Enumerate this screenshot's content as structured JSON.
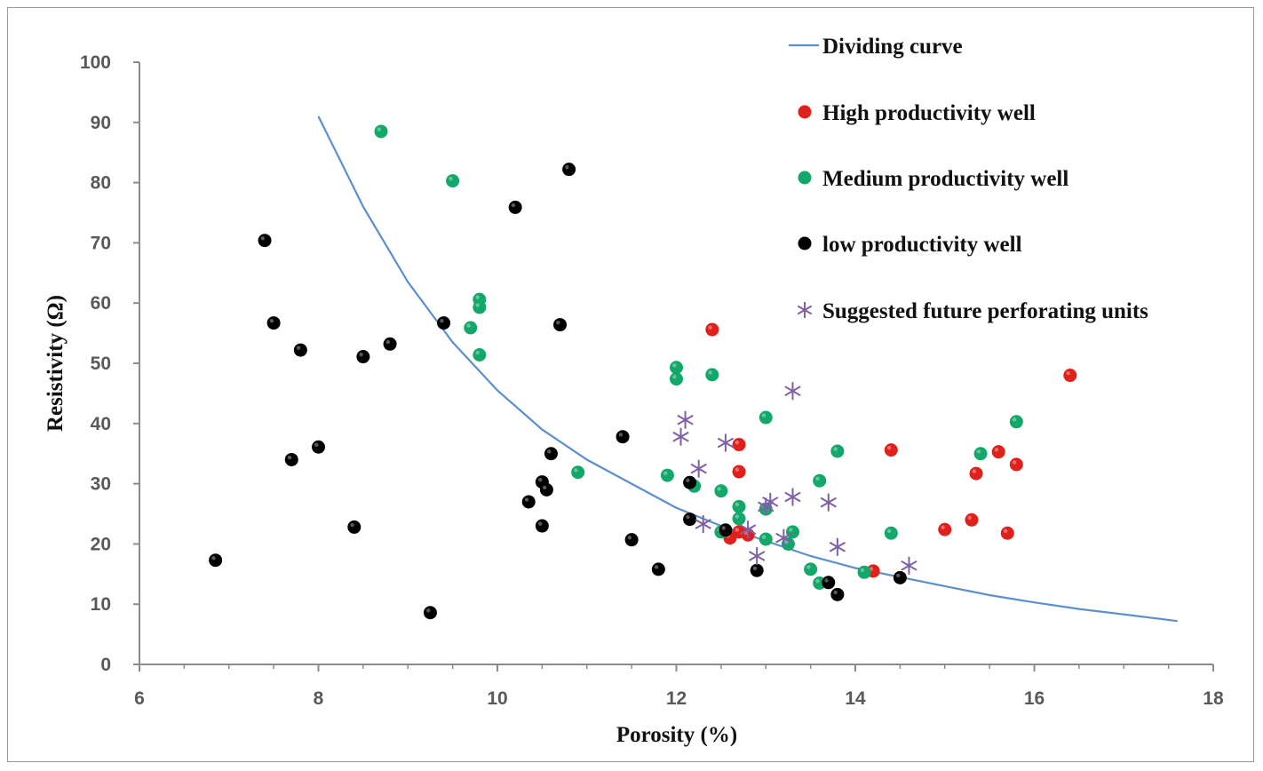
{
  "chart_data": {
    "type": "scatter",
    "title": "",
    "xlabel": "Porosity (%)",
    "ylabel": "Resistivity (Ω)",
    "xlim": [
      6,
      18
    ],
    "ylim": [
      0,
      100
    ],
    "xticks": [
      "6",
      "8",
      "10",
      "12",
      "14",
      "16",
      "18"
    ],
    "yticks": [
      "0",
      "10",
      "20",
      "30",
      "40",
      "50",
      "60",
      "70",
      "80",
      "90",
      "100"
    ],
    "legend_position": "top-right",
    "series": [
      {
        "name": "Dividing curve",
        "kind": "line",
        "color": "#5b8fcf",
        "points": [
          [
            8.0,
            91.0
          ],
          [
            8.5,
            76.0
          ],
          [
            9.0,
            63.5
          ],
          [
            9.5,
            53.5
          ],
          [
            10.0,
            45.5
          ],
          [
            10.5,
            39.0
          ],
          [
            11.0,
            34.0
          ],
          [
            11.5,
            30.0
          ],
          [
            12.0,
            26.0
          ],
          [
            12.5,
            23.0
          ],
          [
            13.0,
            20.5
          ],
          [
            13.5,
            18.0
          ],
          [
            14.0,
            16.0
          ],
          [
            14.5,
            14.5
          ],
          [
            15.0,
            13.0
          ],
          [
            15.5,
            11.5
          ],
          [
            16.0,
            10.3
          ],
          [
            16.5,
            9.2
          ],
          [
            17.0,
            8.3
          ],
          [
            17.6,
            7.2
          ]
        ]
      },
      {
        "name": "High productivity well",
        "kind": "marker",
        "color": "#e0201b",
        "points": [
          [
            12.4,
            55.6
          ],
          [
            12.7,
            36.5
          ],
          [
            12.7,
            32.0
          ],
          [
            12.7,
            22.0
          ],
          [
            12.6,
            21.0
          ],
          [
            12.8,
            21.5
          ],
          [
            14.2,
            15.5
          ],
          [
            14.4,
            35.6
          ],
          [
            15.0,
            22.4
          ],
          [
            15.3,
            24.0
          ],
          [
            15.35,
            31.7
          ],
          [
            15.6,
            35.3
          ],
          [
            15.7,
            21.8
          ],
          [
            15.8,
            33.2
          ],
          [
            16.4,
            48.0
          ]
        ]
      },
      {
        "name": "Medium productivity well",
        "kind": "marker",
        "color": "#13a86a",
        "points": [
          [
            8.7,
            88.5
          ],
          [
            9.5,
            80.3
          ],
          [
            9.7,
            55.9
          ],
          [
            9.8,
            60.6
          ],
          [
            9.8,
            59.3
          ],
          [
            9.8,
            51.4
          ],
          [
            10.9,
            31.9
          ],
          [
            11.9,
            31.4
          ],
          [
            12.0,
            47.4
          ],
          [
            12.0,
            49.3
          ],
          [
            12.2,
            29.6
          ],
          [
            12.4,
            48.1
          ],
          [
            12.5,
            28.8
          ],
          [
            12.5,
            22.0
          ],
          [
            12.7,
            26.2
          ],
          [
            12.7,
            24.2
          ],
          [
            13.0,
            25.8
          ],
          [
            13.0,
            20.8
          ],
          [
            13.0,
            41.0
          ],
          [
            13.25,
            20.0
          ],
          [
            13.3,
            22.0
          ],
          [
            13.5,
            15.8
          ],
          [
            13.6,
            13.5
          ],
          [
            13.6,
            30.5
          ],
          [
            13.8,
            35.4
          ],
          [
            14.1,
            15.3
          ],
          [
            14.4,
            21.8
          ],
          [
            15.4,
            35.0
          ],
          [
            15.8,
            40.3
          ]
        ]
      },
      {
        "name": "low productivity well",
        "kind": "marker",
        "color": "#000000",
        "points": [
          [
            6.85,
            17.3
          ],
          [
            7.4,
            70.4
          ],
          [
            7.5,
            56.7
          ],
          [
            7.7,
            34.0
          ],
          [
            7.8,
            52.2
          ],
          [
            8.0,
            36.1
          ],
          [
            8.4,
            22.8
          ],
          [
            8.5,
            51.1
          ],
          [
            8.8,
            53.2
          ],
          [
            9.25,
            8.6
          ],
          [
            9.4,
            56.7
          ],
          [
            10.2,
            75.9
          ],
          [
            10.35,
            27.0
          ],
          [
            10.5,
            30.3
          ],
          [
            10.5,
            23.0
          ],
          [
            10.55,
            29.0
          ],
          [
            10.6,
            35.0
          ],
          [
            10.7,
            56.4
          ],
          [
            10.8,
            82.2
          ],
          [
            11.4,
            37.8
          ],
          [
            11.5,
            20.7
          ],
          [
            11.8,
            15.8
          ],
          [
            12.15,
            24.1
          ],
          [
            12.15,
            30.2
          ],
          [
            12.55,
            22.3
          ],
          [
            12.9,
            15.6
          ],
          [
            13.7,
            13.6
          ],
          [
            13.8,
            11.6
          ],
          [
            14.5,
            14.4
          ]
        ]
      },
      {
        "name": "Suggested future perforating units",
        "kind": "asterisk",
        "color": "#7f5fa8",
        "points": [
          [
            12.05,
            37.8
          ],
          [
            12.1,
            40.6
          ],
          [
            12.25,
            32.5
          ],
          [
            12.3,
            23.3
          ],
          [
            12.55,
            36.8
          ],
          [
            12.8,
            22.4
          ],
          [
            12.9,
            18.0
          ],
          [
            13.0,
            26.2
          ],
          [
            13.05,
            27.0
          ],
          [
            13.2,
            21.0
          ],
          [
            13.3,
            45.4
          ],
          [
            13.3,
            27.8
          ],
          [
            13.7,
            26.9
          ],
          [
            13.8,
            19.5
          ],
          [
            14.6,
            16.4
          ]
        ]
      }
    ]
  }
}
